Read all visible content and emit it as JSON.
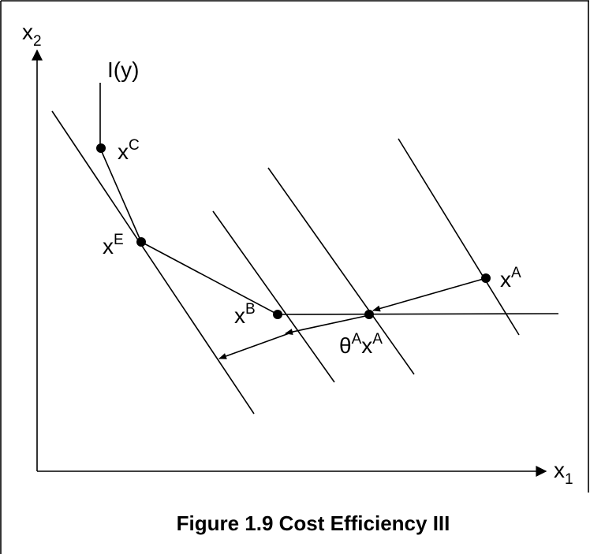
{
  "labels": {
    "x2": {
      "base": "x",
      "sub": "2"
    },
    "x1": {
      "base": "x",
      "sub": "1"
    },
    "isoquant": "I(y)",
    "xC": {
      "base": "x",
      "sup": "C"
    },
    "xE": {
      "base": "x",
      "sup": "E"
    },
    "xB": {
      "base": "x",
      "sup": "B"
    },
    "xA": {
      "base": "x",
      "sup": "A"
    },
    "thetaAxA": {
      "theta": "θ",
      "sup1": "A",
      "base": "x",
      "sup2": "A"
    }
  },
  "caption": "Figure 1.9 Cost Efficiency III"
}
